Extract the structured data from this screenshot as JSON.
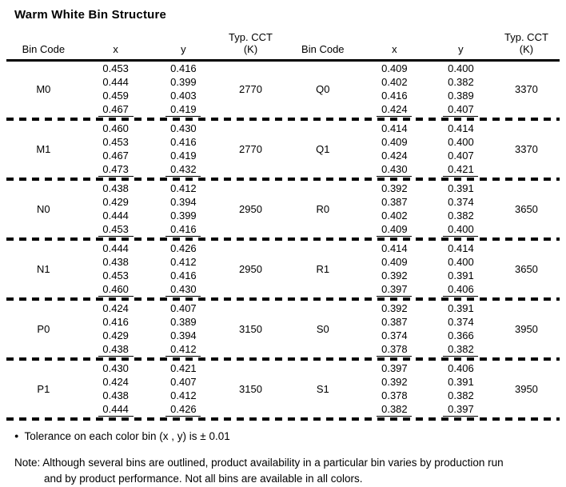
{
  "title": "Warm White Bin Structure",
  "table": {
    "headers": {
      "bin_code": "Bin Code",
      "x": "x",
      "y": "y",
      "cct_line1": "Typ. CCT",
      "cct_line2": "(K)"
    },
    "groups": [
      {
        "left": {
          "bin": "M0",
          "cct": "2770",
          "points": [
            [
              "0.453",
              "0.416"
            ],
            [
              "0.444",
              "0.399"
            ],
            [
              "0.459",
              "0.403"
            ],
            [
              "0.467",
              "0.419"
            ]
          ]
        },
        "right": {
          "bin": "Q0",
          "cct": "3370",
          "points": [
            [
              "0.409",
              "0.400"
            ],
            [
              "0.402",
              "0.382"
            ],
            [
              "0.416",
              "0.389"
            ],
            [
              "0.424",
              "0.407"
            ]
          ]
        }
      },
      {
        "left": {
          "bin": "M1",
          "cct": "2770",
          "points": [
            [
              "0.460",
              "0.430"
            ],
            [
              "0.453",
              "0.416"
            ],
            [
              "0.467",
              "0.419"
            ],
            [
              "0.473",
              "0.432"
            ]
          ]
        },
        "right": {
          "bin": "Q1",
          "cct": "3370",
          "points": [
            [
              "0.414",
              "0.414"
            ],
            [
              "0.409",
              "0.400"
            ],
            [
              "0.424",
              "0.407"
            ],
            [
              "0.430",
              "0.421"
            ]
          ]
        }
      },
      {
        "left": {
          "bin": "N0",
          "cct": "2950",
          "points": [
            [
              "0.438",
              "0.412"
            ],
            [
              "0.429",
              "0.394"
            ],
            [
              "0.444",
              "0.399"
            ],
            [
              "0.453",
              "0.416"
            ]
          ]
        },
        "right": {
          "bin": "R0",
          "cct": "3650",
          "points": [
            [
              "0.392",
              "0.391"
            ],
            [
              "0.387",
              "0.374"
            ],
            [
              "0.402",
              "0.382"
            ],
            [
              "0.409",
              "0.400"
            ]
          ]
        }
      },
      {
        "left": {
          "bin": "N1",
          "cct": "2950",
          "points": [
            [
              "0.444",
              "0.426"
            ],
            [
              "0.438",
              "0.412"
            ],
            [
              "0.453",
              "0.416"
            ],
            [
              "0.460",
              "0.430"
            ]
          ]
        },
        "right": {
          "bin": "R1",
          "cct": "3650",
          "points": [
            [
              "0.414",
              "0.414"
            ],
            [
              "0.409",
              "0.400"
            ],
            [
              "0.392",
              "0.391"
            ],
            [
              "0.397",
              "0.406"
            ]
          ]
        }
      },
      {
        "left": {
          "bin": "P0",
          "cct": "3150",
          "points": [
            [
              "0.424",
              "0.407"
            ],
            [
              "0.416",
              "0.389"
            ],
            [
              "0.429",
              "0.394"
            ],
            [
              "0.438",
              "0.412"
            ]
          ]
        },
        "right": {
          "bin": "S0",
          "cct": "3950",
          "points": [
            [
              "0.392",
              "0.391"
            ],
            [
              "0.387",
              "0.374"
            ],
            [
              "0.374",
              "0.366"
            ],
            [
              "0.378",
              "0.382"
            ]
          ]
        }
      },
      {
        "left": {
          "bin": "P1",
          "cct": "3150",
          "points": [
            [
              "0.430",
              "0.421"
            ],
            [
              "0.424",
              "0.407"
            ],
            [
              "0.438",
              "0.412"
            ],
            [
              "0.444",
              "0.426"
            ]
          ]
        },
        "right": {
          "bin": "S1",
          "cct": "3950",
          "points": [
            [
              "0.397",
              "0.406"
            ],
            [
              "0.392",
              "0.391"
            ],
            [
              "0.378",
              "0.382"
            ],
            [
              "0.382",
              "0.397"
            ]
          ]
        }
      }
    ]
  },
  "footnotes": {
    "bullet": "●",
    "tolerance": "Tolerance on each color bin (x , y) is ± 0.01",
    "note_line1": "Note: Although several bins are outlined, product availability in a particular bin varies by production run",
    "note_line2": "and by product performance. Not all bins are available in all colors."
  }
}
